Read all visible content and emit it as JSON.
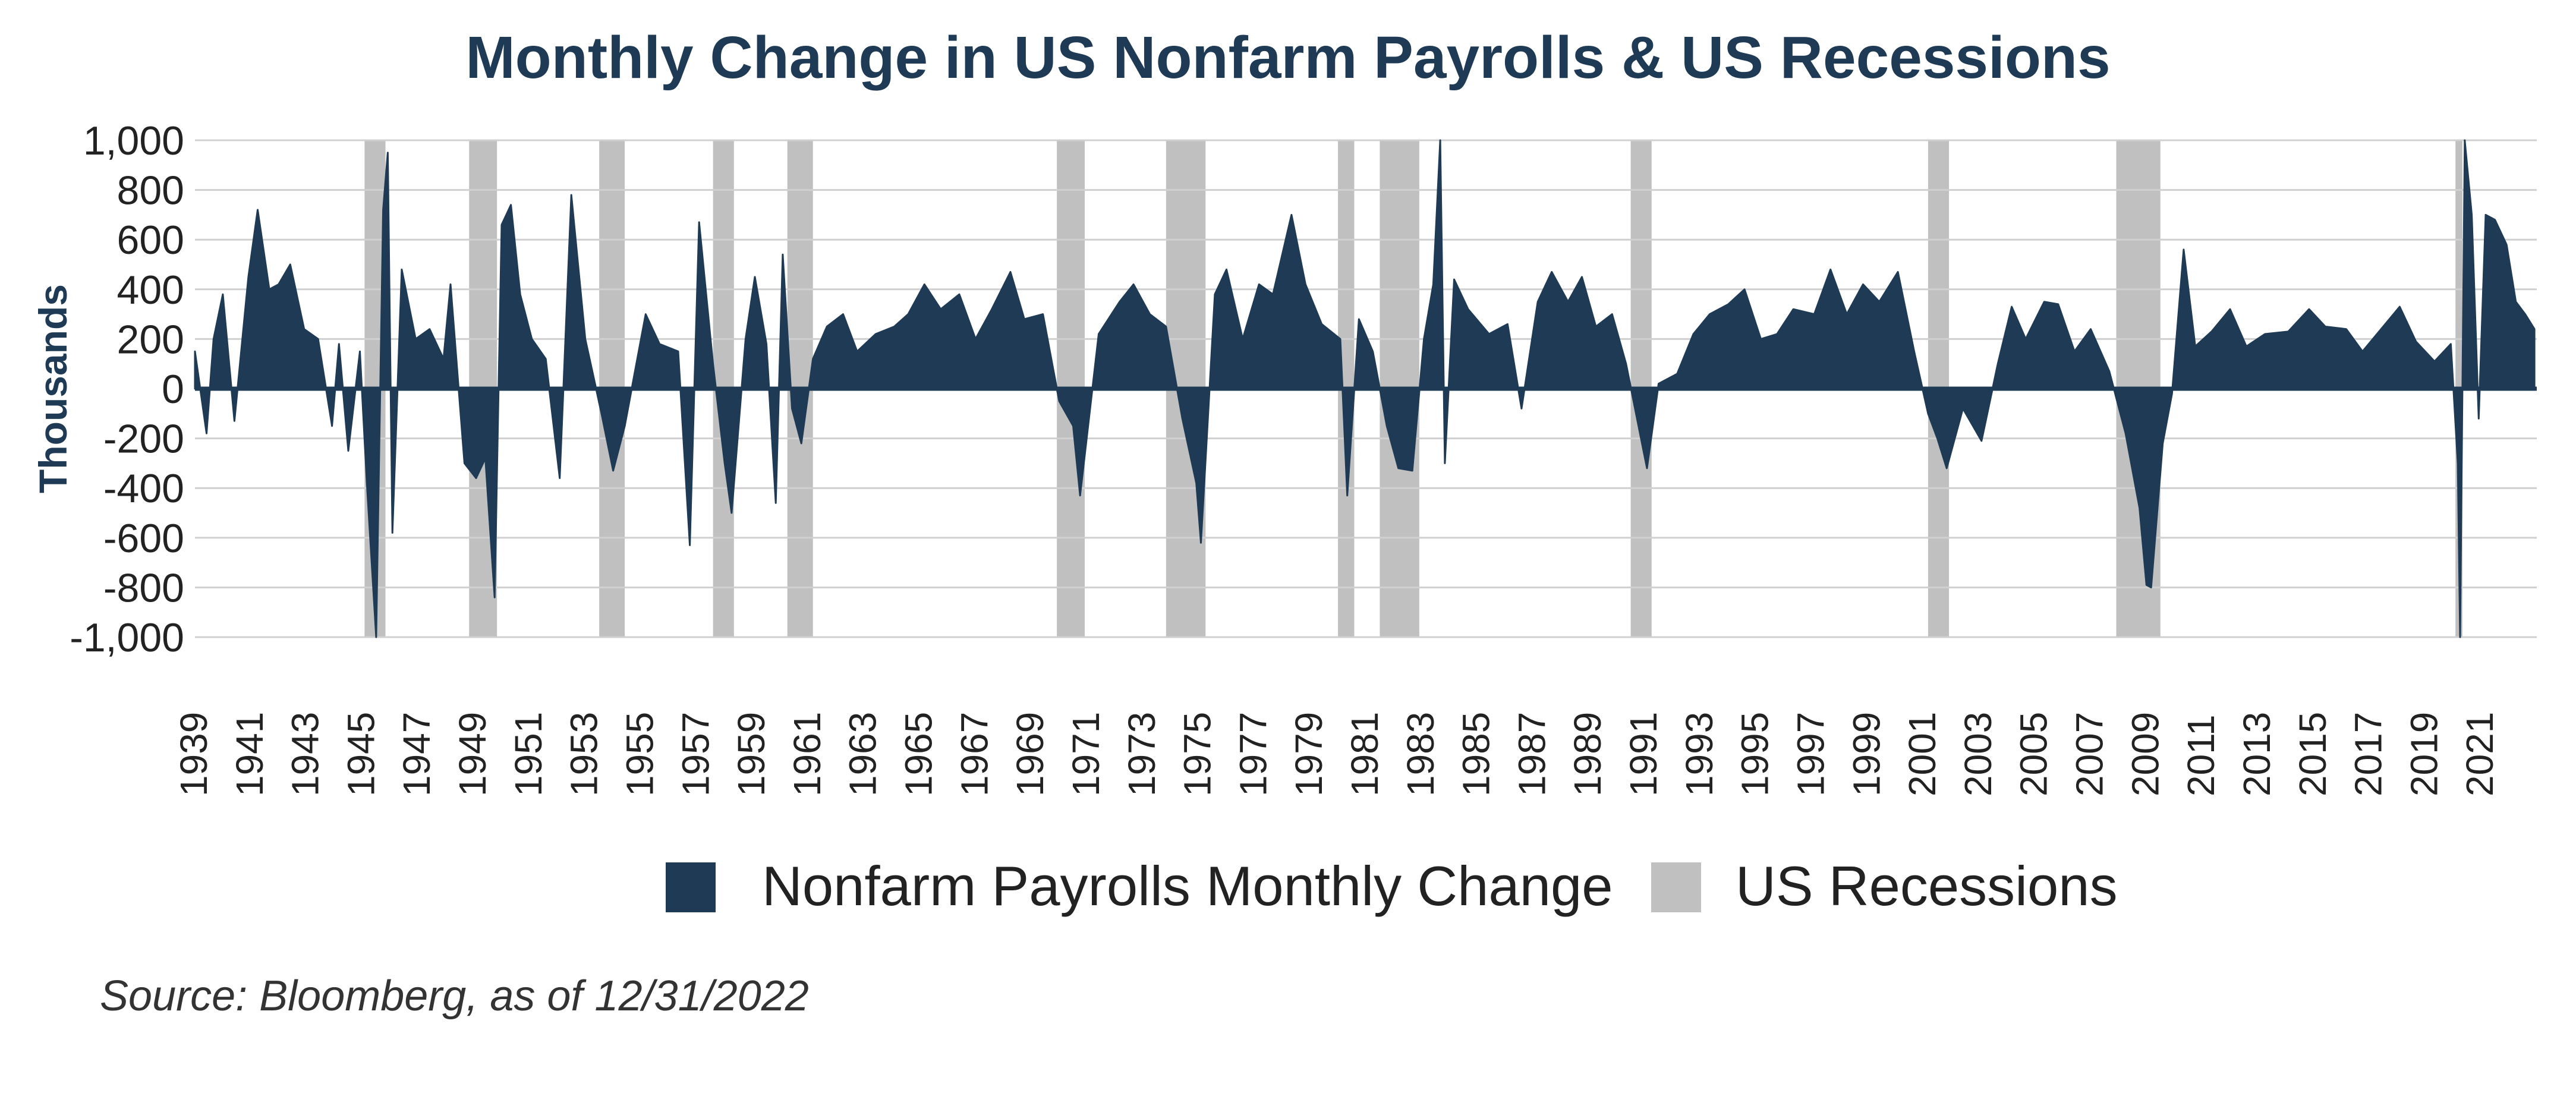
{
  "colors": {
    "series": "#1e3a55",
    "recession": "#c0c0c0",
    "grid": "#d0d0d0",
    "text": "#222222",
    "title": "#1e3a55"
  },
  "source": "Source: Bloomberg, as of 12/31/2022",
  "chart_data": {
    "type": "area",
    "title": "Monthly Change in US Nonfarm Payrolls & US Recessions",
    "ylabel": "Thousands",
    "xlabel": "",
    "ylim": [
      -1000,
      1000
    ],
    "xlim": [
      "1939-01",
      "2022-12"
    ],
    "y_ticks": [
      "1,000",
      "800",
      "600",
      "400",
      "200",
      "0",
      "-200",
      "-400",
      "-600",
      "-800",
      "-1,000"
    ],
    "y_tick_values": [
      1000,
      800,
      600,
      400,
      200,
      0,
      -200,
      -400,
      -600,
      -800,
      -1000
    ],
    "x_ticks": [
      "1939",
      "1941",
      "1943",
      "1945",
      "1947",
      "1949",
      "1951",
      "1953",
      "1955",
      "1957",
      "1959",
      "1961",
      "1963",
      "1965",
      "1967",
      "1969",
      "1971",
      "1973",
      "1975",
      "1977",
      "1979",
      "1981",
      "1983",
      "1985",
      "1987",
      "1989",
      "1991",
      "1993",
      "1995",
      "1997",
      "1999",
      "2001",
      "2003",
      "2005",
      "2007",
      "2009",
      "2011",
      "2013",
      "2015",
      "2017",
      "2019",
      "2021"
    ],
    "grid": true,
    "legend_position": "bottom",
    "legend": [
      "Nonfarm Payrolls Monthly Change",
      "US Recessions"
    ],
    "recessions": [
      [
        "1945-02",
        "1945-10"
      ],
      [
        "1948-11",
        "1949-10"
      ],
      [
        "1953-07",
        "1954-05"
      ],
      [
        "1957-08",
        "1958-04"
      ],
      [
        "1960-04",
        "1961-02"
      ],
      [
        "1969-12",
        "1970-11"
      ],
      [
        "1973-11",
        "1975-03"
      ],
      [
        "1980-01",
        "1980-07"
      ],
      [
        "1981-07",
        "1982-11"
      ],
      [
        "1990-07",
        "1991-03"
      ],
      [
        "2001-03",
        "2001-11"
      ],
      [
        "2007-12",
        "2009-06"
      ],
      [
        "2020-02",
        "2020-04"
      ]
    ],
    "series": [
      {
        "name": "Nonfarm Payrolls Monthly Change",
        "points": [
          [
            "1939-01",
            150
          ],
          [
            "1939-06",
            -180
          ],
          [
            "1939-09",
            200
          ],
          [
            "1940-01",
            380
          ],
          [
            "1940-06",
            -130
          ],
          [
            "1940-12",
            450
          ],
          [
            "1941-04",
            720
          ],
          [
            "1941-09",
            400
          ],
          [
            "1942-01",
            420
          ],
          [
            "1942-06",
            500
          ],
          [
            "1942-12",
            240
          ],
          [
            "1943-06",
            200
          ],
          [
            "1943-12",
            -150
          ],
          [
            "1944-03",
            180
          ],
          [
            "1944-07",
            -250
          ],
          [
            "1944-12",
            150
          ],
          [
            "1945-03",
            -380
          ],
          [
            "1945-07",
            -1000
          ],
          [
            "1945-10",
            720
          ],
          [
            "1945-12",
            950
          ],
          [
            "1946-02",
            -580
          ],
          [
            "1946-06",
            480
          ],
          [
            "1946-12",
            200
          ],
          [
            "1947-06",
            240
          ],
          [
            "1947-12",
            120
          ],
          [
            "1948-03",
            420
          ],
          [
            "1948-09",
            -300
          ],
          [
            "1949-02",
            -360
          ],
          [
            "1949-06",
            -280
          ],
          [
            "1949-10",
            -840
          ],
          [
            "1950-01",
            660
          ],
          [
            "1950-05",
            740
          ],
          [
            "1950-09",
            380
          ],
          [
            "1951-02",
            200
          ],
          [
            "1951-08",
            120
          ],
          [
            "1952-02",
            -360
          ],
          [
            "1952-07",
            780
          ],
          [
            "1953-01",
            200
          ],
          [
            "1953-08",
            -100
          ],
          [
            "1954-01",
            -330
          ],
          [
            "1954-06",
            -150
          ],
          [
            "1955-03",
            300
          ],
          [
            "1955-09",
            180
          ],
          [
            "1956-05",
            150
          ],
          [
            "1956-10",
            -630
          ],
          [
            "1957-02",
            670
          ],
          [
            "1957-08",
            100
          ],
          [
            "1958-01",
            -300
          ],
          [
            "1958-04",
            -500
          ],
          [
            "1958-10",
            200
          ],
          [
            "1959-02",
            450
          ],
          [
            "1959-07",
            180
          ],
          [
            "1959-11",
            -460
          ],
          [
            "1960-02",
            540
          ],
          [
            "1960-06",
            -80
          ],
          [
            "1960-10",
            -220
          ],
          [
            "1961-03",
            120
          ],
          [
            "1961-09",
            250
          ],
          [
            "1962-04",
            300
          ],
          [
            "1962-10",
            150
          ],
          [
            "1963-06",
            220
          ],
          [
            "1964-02",
            250
          ],
          [
            "1964-08",
            300
          ],
          [
            "1965-03",
            420
          ],
          [
            "1965-10",
            320
          ],
          [
            "1966-06",
            380
          ],
          [
            "1967-01",
            200
          ],
          [
            "1967-08",
            320
          ],
          [
            "1968-04",
            470
          ],
          [
            "1968-10",
            280
          ],
          [
            "1969-06",
            300
          ],
          [
            "1970-01",
            -50
          ],
          [
            "1970-07",
            -150
          ],
          [
            "1970-10",
            -430
          ],
          [
            "1971-06",
            220
          ],
          [
            "1972-03",
            350
          ],
          [
            "1972-09",
            420
          ],
          [
            "1973-04",
            300
          ],
          [
            "1973-11",
            250
          ],
          [
            "1974-06",
            -120
          ],
          [
            "1974-12",
            -380
          ],
          [
            "1975-02",
            -620
          ],
          [
            "1975-08",
            380
          ],
          [
            "1976-01",
            480
          ],
          [
            "1976-08",
            200
          ],
          [
            "1977-03",
            420
          ],
          [
            "1977-09",
            380
          ],
          [
            "1978-05",
            700
          ],
          [
            "1978-11",
            420
          ],
          [
            "1979-06",
            260
          ],
          [
            "1980-02",
            200
          ],
          [
            "1980-05",
            -430
          ],
          [
            "1980-10",
            280
          ],
          [
            "1981-04",
            150
          ],
          [
            "1981-10",
            -150
          ],
          [
            "1982-03",
            -320
          ],
          [
            "1982-09",
            -330
          ],
          [
            "1983-02",
            200
          ],
          [
            "1983-06",
            420
          ],
          [
            "1983-09",
            1000
          ],
          [
            "1983-11",
            -300
          ],
          [
            "1984-03",
            440
          ],
          [
            "1984-09",
            320
          ],
          [
            "1985-06",
            220
          ],
          [
            "1986-02",
            260
          ],
          [
            "1986-08",
            -80
          ],
          [
            "1987-03",
            350
          ],
          [
            "1987-09",
            470
          ],
          [
            "1988-04",
            350
          ],
          [
            "1988-10",
            450
          ],
          [
            "1989-04",
            250
          ],
          [
            "1989-11",
            300
          ],
          [
            "1990-05",
            100
          ],
          [
            "1990-11",
            -180
          ],
          [
            "1991-02",
            -320
          ],
          [
            "1991-07",
            20
          ],
          [
            "1992-03",
            60
          ],
          [
            "1992-10",
            220
          ],
          [
            "1993-05",
            300
          ],
          [
            "1994-01",
            340
          ],
          [
            "1994-08",
            400
          ],
          [
            "1995-03",
            200
          ],
          [
            "1995-10",
            220
          ],
          [
            "1996-05",
            320
          ],
          [
            "1997-02",
            300
          ],
          [
            "1997-09",
            480
          ],
          [
            "1998-04",
            300
          ],
          [
            "1998-11",
            420
          ],
          [
            "1999-06",
            350
          ],
          [
            "2000-02",
            470
          ],
          [
            "2000-09",
            150
          ],
          [
            "2001-03",
            -100
          ],
          [
            "2001-07",
            -200
          ],
          [
            "2001-11",
            -320
          ],
          [
            "2002-06",
            -80
          ],
          [
            "2003-02",
            -210
          ],
          [
            "2003-09",
            100
          ],
          [
            "2004-03",
            330
          ],
          [
            "2004-09",
            200
          ],
          [
            "2005-05",
            350
          ],
          [
            "2005-11",
            340
          ],
          [
            "2006-06",
            150
          ],
          [
            "2007-01",
            240
          ],
          [
            "2007-09",
            70
          ],
          [
            "2008-04",
            -180
          ],
          [
            "2008-10",
            -480
          ],
          [
            "2009-01",
            -790
          ],
          [
            "2009-03",
            -800
          ],
          [
            "2009-08",
            -220
          ],
          [
            "2009-12",
            -20
          ],
          [
            "2010-05",
            560
          ],
          [
            "2010-10",
            170
          ],
          [
            "2011-05",
            230
          ],
          [
            "2012-01",
            320
          ],
          [
            "2012-08",
            170
          ],
          [
            "2013-04",
            220
          ],
          [
            "2014-02",
            230
          ],
          [
            "2014-11",
            320
          ],
          [
            "2015-06",
            250
          ],
          [
            "2016-03",
            240
          ],
          [
            "2016-10",
            150
          ],
          [
            "2017-06",
            240
          ],
          [
            "2018-02",
            330
          ],
          [
            "2018-09",
            190
          ],
          [
            "2019-05",
            110
          ],
          [
            "2019-12",
            180
          ],
          [
            "2020-03",
            -300
          ],
          [
            "2020-04",
            -1000
          ],
          [
            "2020-06",
            1000
          ],
          [
            "2020-09",
            700
          ],
          [
            "2020-12",
            -120
          ],
          [
            "2021-03",
            700
          ],
          [
            "2021-07",
            680
          ],
          [
            "2021-12",
            580
          ],
          [
            "2022-04",
            350
          ],
          [
            "2022-08",
            300
          ],
          [
            "2022-12",
            240
          ]
        ]
      }
    ]
  }
}
